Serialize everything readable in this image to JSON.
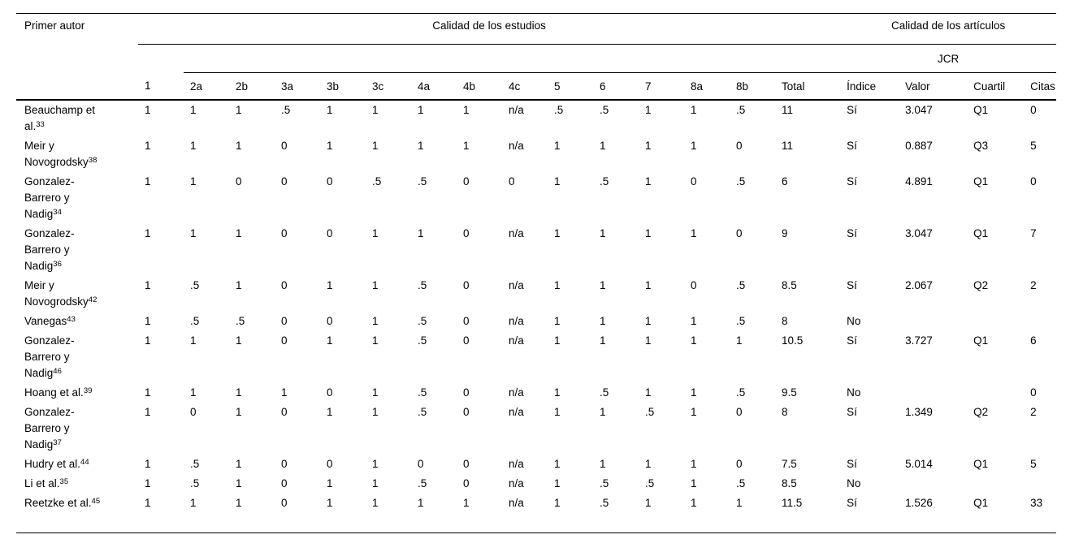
{
  "page": {
    "background": "#ffffff",
    "text_color": "#000000",
    "rule_color": "#000000"
  },
  "table": {
    "author_column_header": "Primer autor",
    "group_headers": {
      "estudios": "Calidad de los estudios",
      "articulos": "Calidad de los artículos"
    },
    "jcr_label": "JCR",
    "column_codes": [
      "1",
      "2a",
      "2b",
      "3a",
      "3b",
      "3c",
      "4a",
      "4b",
      "4c",
      "5",
      "6",
      "7",
      "8a",
      "8b",
      "Total",
      "Índice",
      "Valor",
      "Cuartil",
      "Citas"
    ],
    "rows": [
      {
        "author": "Beauchamp et al.",
        "ref": "33",
        "estudios": [
          "1",
          "1",
          "1",
          ".5",
          "1",
          "1",
          "1",
          "1",
          "n/a",
          ".5",
          ".5",
          "1",
          "1",
          ".5",
          "11"
        ],
        "jcr": {
          "indice": "Sí",
          "valor": "3.047",
          "cuartil": "Q1",
          "citas": "0"
        }
      },
      {
        "author": "Meir y Novogrodsky",
        "ref": "38",
        "estudios": [
          "1",
          "1",
          "1",
          "0",
          "1",
          "1",
          "1",
          "1",
          "n/a",
          "1",
          "1",
          "1",
          "1",
          "0",
          "11"
        ],
        "jcr": {
          "indice": "Sí",
          "valor": "0.887",
          "cuartil": "Q3",
          "citas": "5"
        }
      },
      {
        "author": "Gonzalez-Barrero y Nadig",
        "ref": "34",
        "estudios": [
          "1",
          "1",
          "0",
          "0",
          "0",
          ".5",
          ".5",
          "0",
          "0",
          "1",
          ".5",
          "1",
          "0",
          ".5",
          "6"
        ],
        "jcr": {
          "indice": "Sí",
          "valor": "4.891",
          "cuartil": "Q1",
          "citas": "0"
        }
      },
      {
        "author": "Gonzalez-Barrero y Nadig",
        "ref": "36",
        "estudios": [
          "1",
          "1",
          "1",
          "0",
          "0",
          "1",
          "1",
          "0",
          "n/a",
          "1",
          "1",
          "1",
          "1",
          "0",
          "9"
        ],
        "jcr": {
          "indice": "Sí",
          "valor": "3.047",
          "cuartil": "Q1",
          "citas": "7"
        }
      },
      {
        "author": "Meir y Novogrodsky",
        "ref": "42",
        "estudios": [
          "1",
          ".5",
          "1",
          "0",
          "1",
          "1",
          ".5",
          "0",
          "n/a",
          "1",
          "1",
          "1",
          "0",
          ".5",
          "8.5"
        ],
        "jcr": {
          "indice": "Sí",
          "valor": "2.067",
          "cuartil": "Q2",
          "citas": "2"
        }
      },
      {
        "author": "Vanegas",
        "ref": "43",
        "estudios": [
          "1",
          ".5",
          ".5",
          "0",
          "0",
          "1",
          ".5",
          "0",
          "n/a",
          "1",
          "1",
          "1",
          "1",
          ".5",
          "8"
        ],
        "jcr": {
          "indice": "No",
          "valor": "",
          "cuartil": "",
          "citas": ""
        }
      },
      {
        "author": "Gonzalez-Barrero y Nadig",
        "ref": "46",
        "estudios": [
          "1",
          "1",
          "1",
          "0",
          "1",
          "1",
          ".5",
          "0",
          "n/a",
          "1",
          "1",
          "1",
          "1",
          "1",
          "10.5"
        ],
        "jcr": {
          "indice": "Sí",
          "valor": "3.727",
          "cuartil": "Q1",
          "citas": "6"
        }
      },
      {
        "author": "Hoang et al.",
        "ref": "39",
        "estudios": [
          "1",
          "1",
          "1",
          "1",
          "0",
          "1",
          ".5",
          "0",
          "n/a",
          "1",
          ".5",
          "1",
          "1",
          ".5",
          "9.5"
        ],
        "jcr": {
          "indice": "No",
          "valor": "",
          "cuartil": "",
          "citas": "0"
        }
      },
      {
        "author": "Gonzalez-Barrero y Nadig",
        "ref": "37",
        "estudios": [
          "1",
          "0",
          "1",
          "0",
          "1",
          "1",
          ".5",
          "0",
          "n/a",
          "1",
          "1",
          ".5",
          "1",
          "0",
          "8"
        ],
        "jcr": {
          "indice": "Sí",
          "valor": "1.349",
          "cuartil": "Q2",
          "citas": "2"
        }
      },
      {
        "author": "Hudry et al.",
        "ref": "44",
        "estudios": [
          "1",
          ".5",
          "1",
          "0",
          "0",
          "1",
          "0",
          "0",
          "n/a",
          "1",
          "1",
          "1",
          "1",
          "0",
          "7.5"
        ],
        "jcr": {
          "indice": "Sí",
          "valor": "5.014",
          "cuartil": "Q1",
          "citas": "5"
        }
      },
      {
        "author": "Li et al.",
        "ref": "35",
        "estudios": [
          "1",
          ".5",
          "1",
          "0",
          "1",
          "1",
          ".5",
          "0",
          "n/a",
          "1",
          ".5",
          ".5",
          "1",
          ".5",
          "8.5"
        ],
        "jcr": {
          "indice": "No",
          "valor": "",
          "cuartil": "",
          "citas": ""
        }
      },
      {
        "author": "Reetzke et al.",
        "ref": "45",
        "estudios": [
          "1",
          "1",
          "1",
          "0",
          "1",
          "1",
          "1",
          "1",
          "n/a",
          "1",
          ".5",
          "1",
          "1",
          "1",
          "11.5"
        ],
        "jcr": {
          "indice": "Sí",
          "valor": "1.526",
          "cuartil": "Q1",
          "citas": "33"
        }
      }
    ]
  }
}
